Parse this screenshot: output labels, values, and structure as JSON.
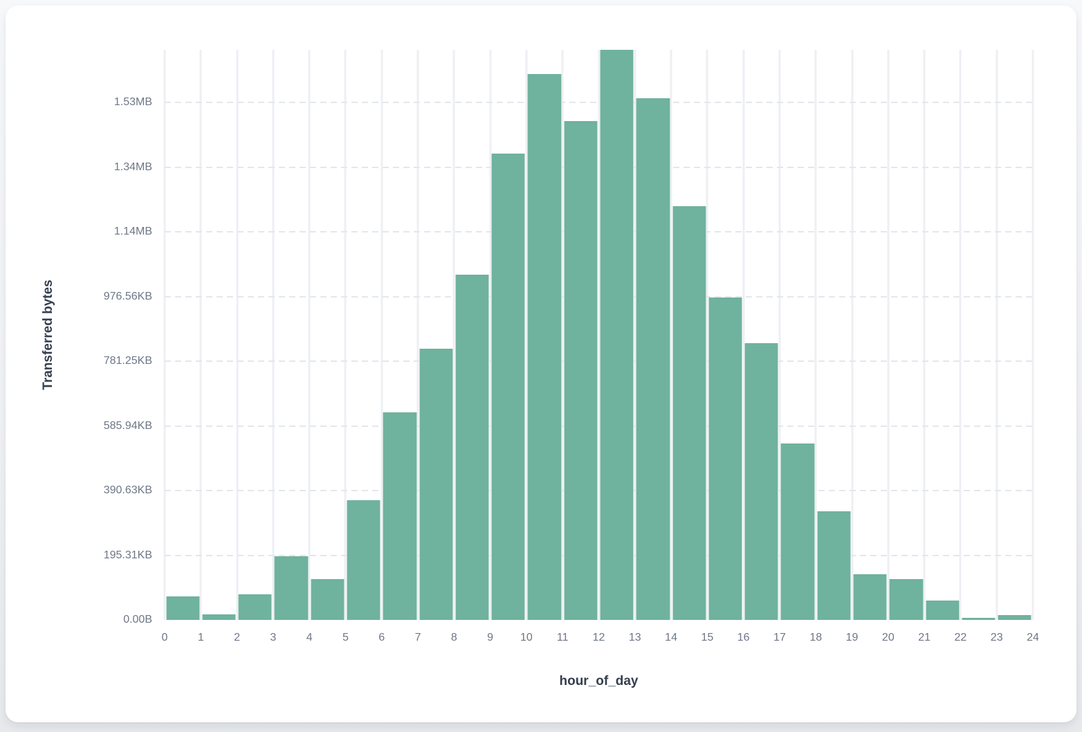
{
  "page": {
    "background_top": "#f7f8fa",
    "background_bottom": "#e7e9ec",
    "card_background": "#ffffff"
  },
  "chart_data": {
    "type": "bar",
    "title": "",
    "xlabel": "hour_of_day",
    "ylabel": "Transferred bytes",
    "bar_color": "#6FB29D",
    "grid": true,
    "legend": "none",
    "x_ticks": [
      "0",
      "1",
      "2",
      "3",
      "4",
      "5",
      "6",
      "7",
      "8",
      "9",
      "10",
      "11",
      "12",
      "13",
      "14",
      "15",
      "16",
      "17",
      "18",
      "19",
      "20",
      "21",
      "22",
      "23",
      "24"
    ],
    "y_ticks": [
      {
        "label": "0.00B",
        "value": 0
      },
      {
        "label": "195.31KB",
        "value": 200000
      },
      {
        "label": "390.63KB",
        "value": 400000
      },
      {
        "label": "585.94KB",
        "value": 600000
      },
      {
        "label": "781.25KB",
        "value": 800000
      },
      {
        "label": "976.56KB",
        "value": 1000000
      },
      {
        "label": "1.14MB",
        "value": 1200000
      },
      {
        "label": "1.34MB",
        "value": 1400000
      },
      {
        "label": "1.53MB",
        "value": 1600000
      }
    ],
    "categories": [
      0,
      1,
      2,
      3,
      4,
      5,
      6,
      7,
      8,
      9,
      10,
      11,
      12,
      13,
      14,
      15,
      16,
      17,
      18,
      19,
      20,
      21,
      22,
      23
    ],
    "values_bytes": [
      72000,
      16500,
      80000,
      196500,
      126000,
      370000,
      642000,
      838000,
      1068000,
      1442000,
      1689000,
      1543000,
      1763000,
      1614000,
      1280000,
      997000,
      856000,
      545000,
      335000,
      141000,
      127000,
      59000,
      5800,
      14300
    ],
    "ylim": [
      0,
      1763000
    ]
  }
}
